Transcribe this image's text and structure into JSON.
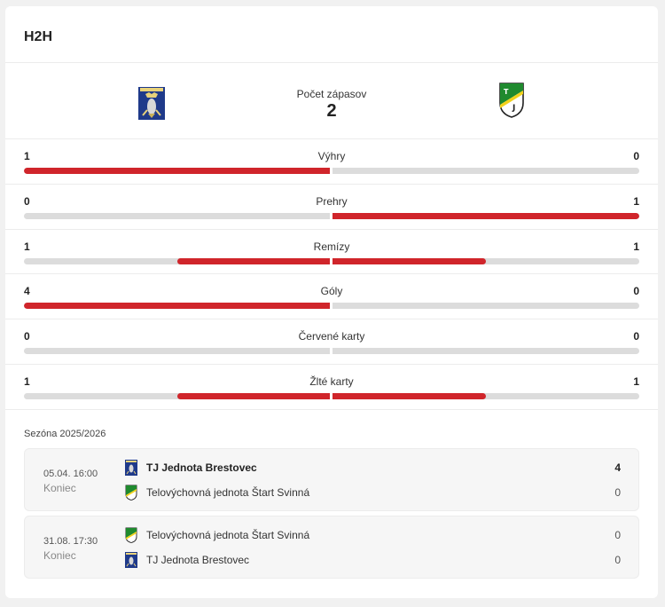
{
  "section": {
    "title": "H2H"
  },
  "header": {
    "home_crest_icon": "tj-jednota-brestovec-crest",
    "away_crest_icon": "start-svinna-crest",
    "matches_label": "Počet zápasov",
    "matches_count": "2"
  },
  "stats": [
    {
      "label": "Výhry",
      "home": "1",
      "away": "0",
      "home_share": 1.0,
      "away_share": 0.0
    },
    {
      "label": "Prehry",
      "home": "0",
      "away": "1",
      "home_share": 0.0,
      "away_share": 1.0
    },
    {
      "label": "Remízy",
      "home": "1",
      "away": "1",
      "home_share": 0.5,
      "away_share": 0.5
    },
    {
      "label": "Góly",
      "home": "4",
      "away": "0",
      "home_share": 1.0,
      "away_share": 0.0
    },
    {
      "label": "Červené karty",
      "home": "0",
      "away": "0",
      "home_share": 0.0,
      "away_share": 0.0
    },
    {
      "label": "Žlté karty",
      "home": "1",
      "away": "1",
      "home_share": 0.5,
      "away_share": 0.5
    }
  ],
  "season": {
    "label": "Sezóna 2025/2026"
  },
  "matches": [
    {
      "date": "05.04. 16:00",
      "status": "Koniec",
      "teams": [
        {
          "name": "TJ Jednota Brestovec",
          "score": "4",
          "crest": "tj-jednota-brestovec-crest",
          "winner": true
        },
        {
          "name": "Telovýchovná jednota Štart Svinná",
          "score": "0",
          "crest": "start-svinna-crest",
          "winner": false
        }
      ]
    },
    {
      "date": "31.08. 17:30",
      "status": "Koniec",
      "teams": [
        {
          "name": "Telovýchovná jednota Štart Svinná",
          "score": "0",
          "crest": "start-svinna-crest",
          "winner": false
        },
        {
          "name": "TJ Jednota Brestovec",
          "score": "0",
          "crest": "tj-jednota-brestovec-crest",
          "winner": false
        }
      ]
    }
  ],
  "colors": {
    "accent": "#d0252b",
    "track": "#dcdcdc",
    "brestovec_blue": "#1f3a8a",
    "svinna_green": "#1f8a2e",
    "svinna_yellow": "#f2d21b"
  }
}
